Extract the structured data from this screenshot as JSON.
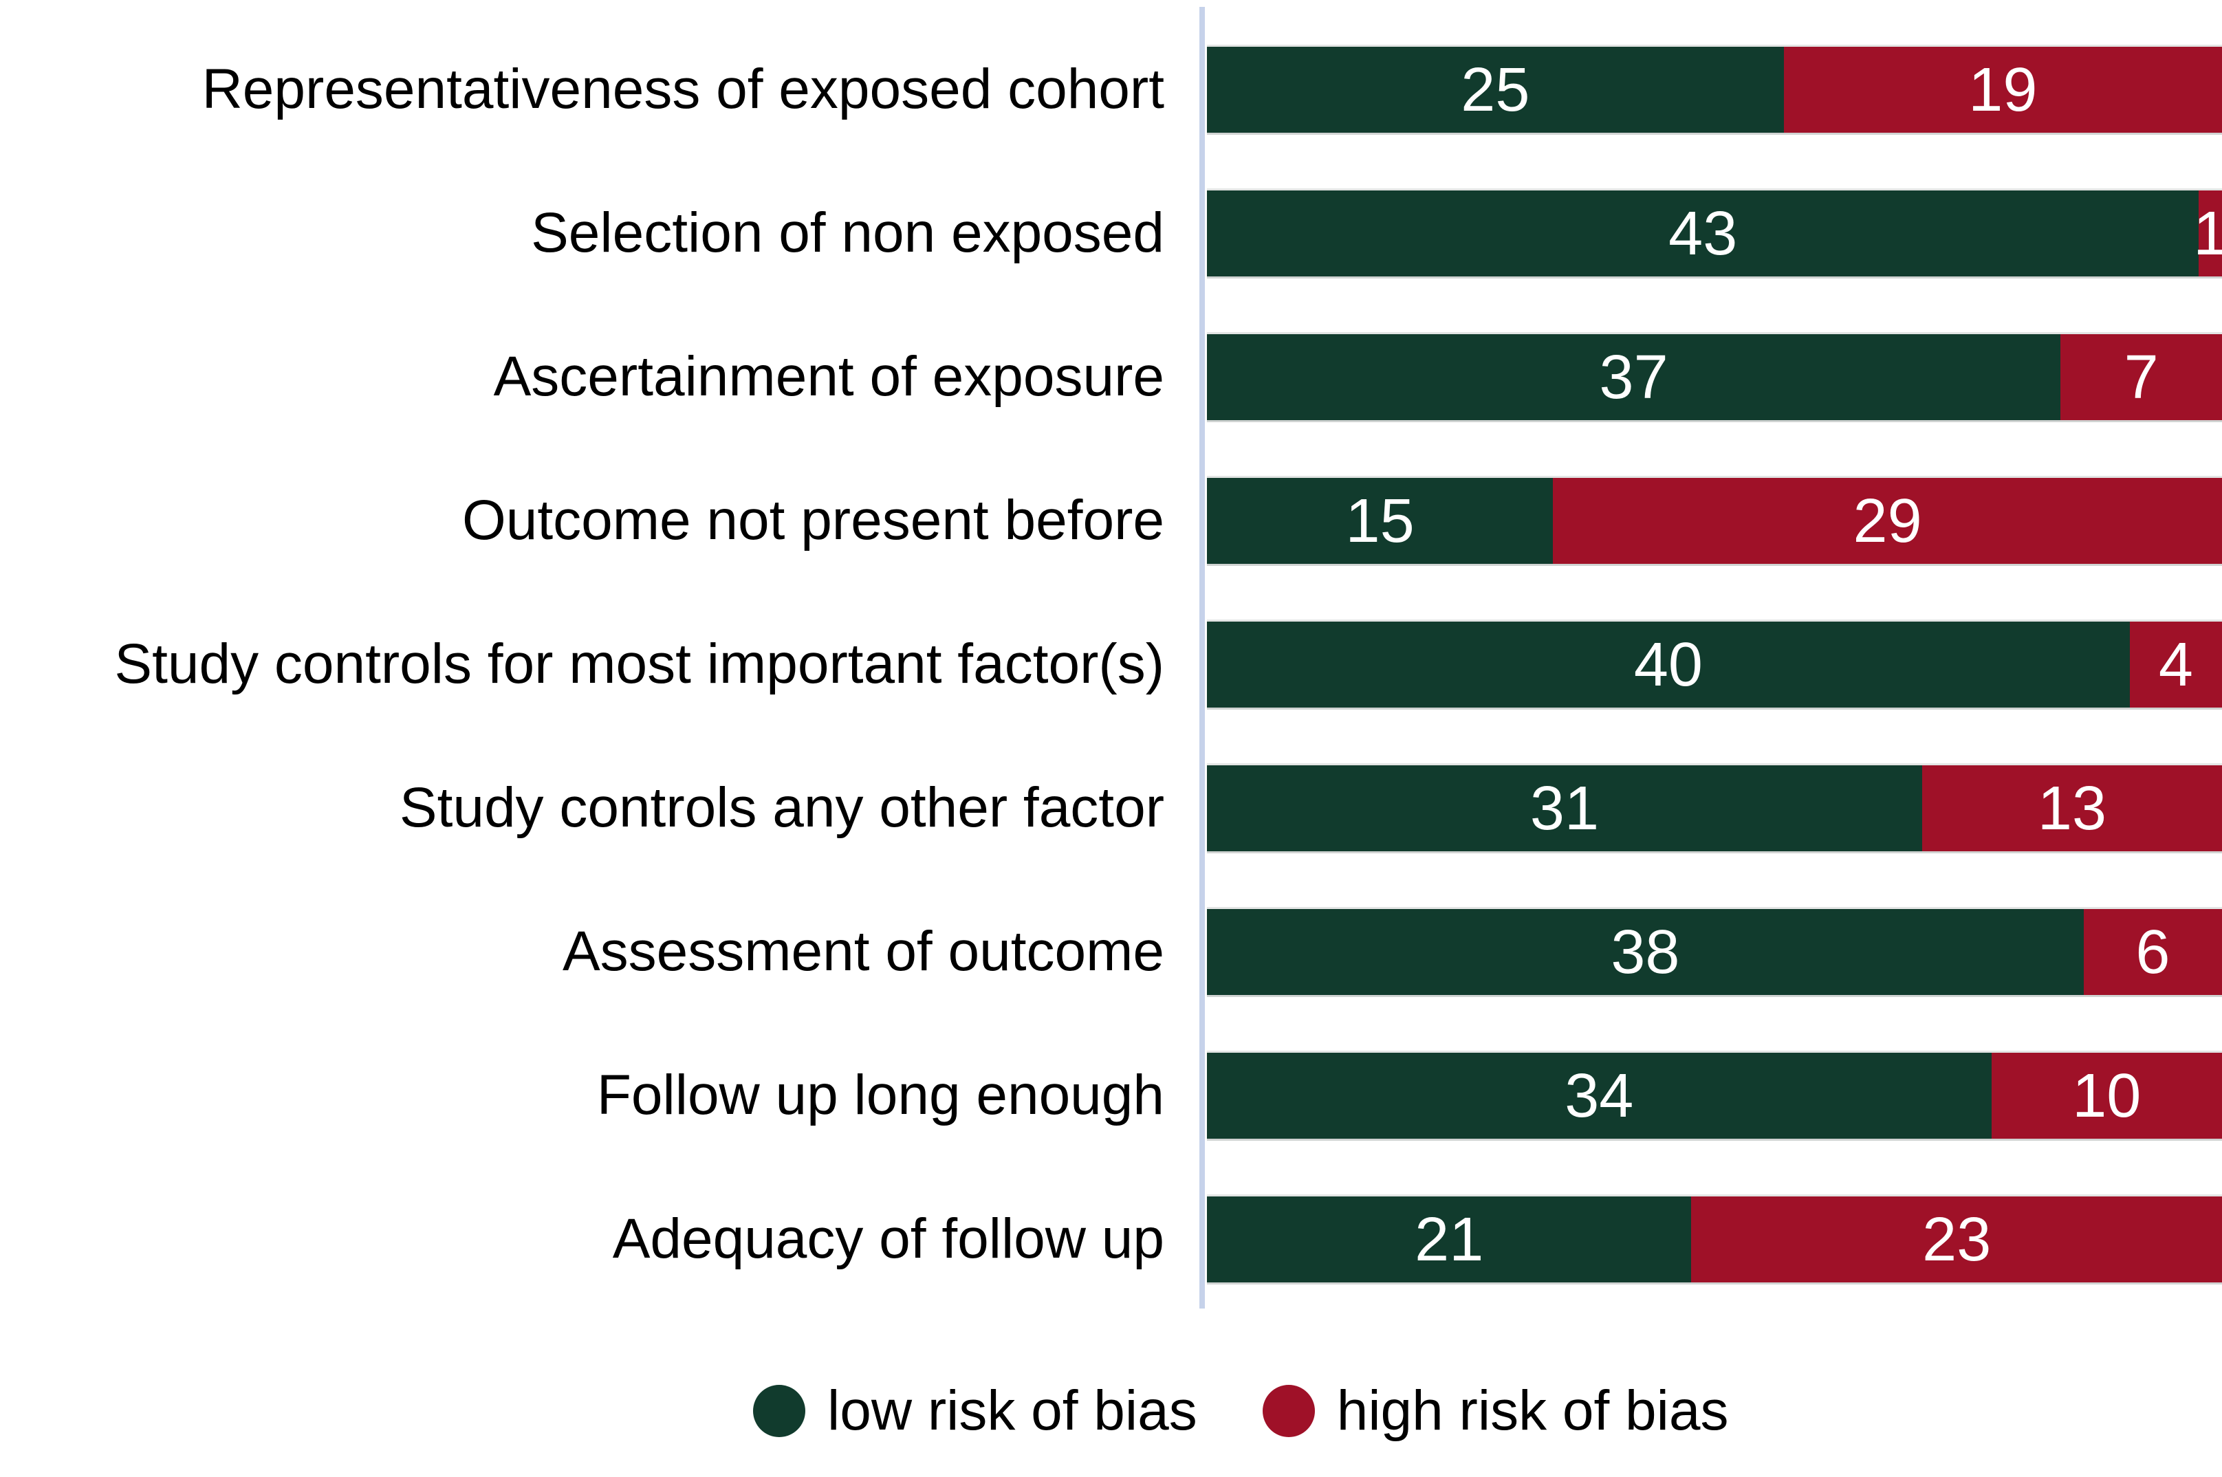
{
  "chart_data": {
    "type": "bar",
    "orientation": "horizontal",
    "stacked": true,
    "title": "",
    "xlabel": "",
    "ylabel": "",
    "grid": false,
    "x_total_per_row": 44,
    "value_labels": "inside segments, white",
    "legend_position": "bottom",
    "background_color": "#ffffff",
    "axis_line_color": "#c6d2ea",
    "label_text_color": "#000000",
    "value_text_color": "#ffffff",
    "categories": [
      "Representativeness of exposed cohort",
      "Selection of non exposed",
      "Ascertainment of exposure",
      "Outcome not present before",
      "Study controls for most important factor(s)",
      "Study controls any other factor",
      "Assessment of outcome",
      "Follow up long enough",
      "Adequacy of follow up"
    ],
    "series": [
      {
        "name": "low risk of bias",
        "color": "#113b2d",
        "values": [
          25,
          43,
          37,
          15,
          40,
          31,
          38,
          34,
          21
        ]
      },
      {
        "name": "high risk of bias",
        "color": "#9f1128",
        "values": [
          19,
          1,
          7,
          29,
          4,
          13,
          6,
          10,
          23
        ]
      }
    ]
  }
}
